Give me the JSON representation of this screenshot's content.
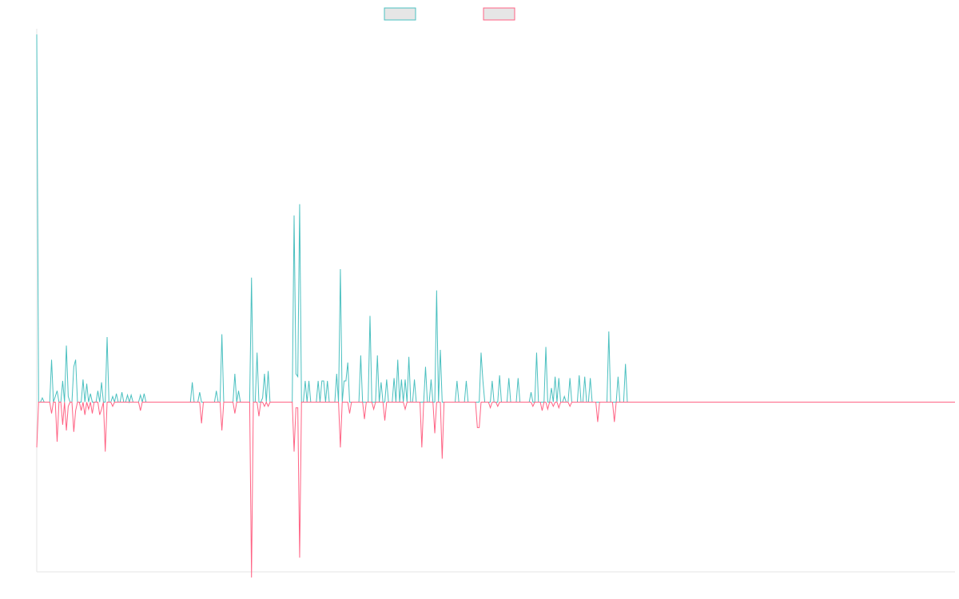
{
  "chart_data": {
    "type": "line",
    "title": "",
    "xlabel": "",
    "ylabel": "",
    "ylim": [
      -1.2,
      2.64
    ],
    "legend": "top",
    "grid": false,
    "colors": {
      "series_a": "#4bc0c0",
      "series_b": "#ff6384",
      "legend_fill": "#e6e6e6",
      "axis": "#e6e6e6"
    },
    "series": [
      {
        "color": "#4bc0c0",
        "values": [
          2.6,
          0,
          0,
          0.03,
          0,
          0,
          0,
          0,
          0.3,
          0,
          0.04,
          0.08,
          0,
          0,
          0.15,
          0,
          0.4,
          0.04,
          0,
          0,
          0.25,
          0.3,
          0,
          0,
          0,
          0.16,
          0,
          0.13,
          0,
          0.06,
          0,
          0,
          0,
          0.08,
          0,
          0.14,
          0,
          0,
          0.46,
          0,
          0,
          0.04,
          0,
          0.06,
          0,
          0,
          0.07,
          0,
          0,
          0.05,
          0,
          0.05,
          0,
          0,
          0,
          0,
          0.05,
          0,
          0.06,
          0,
          0,
          0,
          0,
          0,
          0,
          0,
          0,
          0,
          0,
          0,
          0,
          0,
          0,
          0,
          0,
          0,
          0,
          0,
          0,
          0,
          0,
          0,
          0,
          0,
          0.14,
          0,
          0,
          0,
          0.07,
          0,
          0,
          0,
          0,
          0,
          0,
          0,
          0,
          0.08,
          0,
          0,
          0.48,
          0,
          0,
          0,
          0,
          0,
          0,
          0.2,
          0,
          0.08,
          0,
          0,
          0,
          0,
          0,
          0,
          0.88,
          0,
          0,
          0.35,
          0,
          0,
          0.03,
          0.2,
          0,
          0.22,
          0,
          0,
          0,
          0,
          0,
          0,
          0,
          0,
          0,
          0,
          0,
          0,
          0,
          1.32,
          0.2,
          0.18,
          1.4,
          0,
          0,
          0.15,
          0,
          0.15,
          0,
          0,
          0,
          0,
          0.15,
          0,
          0.15,
          0.15,
          0,
          0.15,
          0,
          0,
          0,
          0,
          0.2,
          0,
          0.94,
          0,
          0.15,
          0.15,
          0.28,
          0,
          0,
          0,
          0,
          0,
          0,
          0.33,
          0,
          0,
          0,
          0,
          0.61,
          0,
          0,
          0,
          0.33,
          0,
          0.14,
          0,
          0,
          0.16,
          0,
          0,
          0,
          0.17,
          0,
          0.3,
          0,
          0.16,
          0,
          0.16,
          0,
          0.32,
          0,
          0,
          0.16,
          0,
          0,
          0,
          0,
          0,
          0.25,
          0,
          0,
          0.16,
          0,
          0,
          0.79,
          0,
          0.37,
          0,
          0,
          0,
          0,
          0,
          0,
          0,
          0,
          0.15,
          0,
          0,
          0,
          0,
          0.15,
          0,
          0,
          0,
          0,
          0,
          0,
          0,
          0.35,
          0.15,
          0,
          0,
          0,
          0,
          0.15,
          0,
          0,
          0,
          0.19,
          0,
          0,
          0,
          0,
          0.17,
          0,
          0,
          0,
          0,
          0.17,
          0,
          0,
          0,
          0,
          0,
          0,
          0.07,
          0,
          0,
          0.35,
          0,
          0,
          0,
          0,
          0.39,
          0,
          0,
          0.1,
          0,
          0.18,
          0,
          0.17,
          0,
          0,
          0.04,
          0,
          0,
          0.17,
          0,
          0,
          0,
          0,
          0.19,
          0,
          0,
          0.18,
          0,
          0,
          0.17,
          0,
          0,
          0,
          0,
          0,
          0,
          0,
          0,
          0,
          0.5,
          0,
          0,
          0,
          0,
          0.18,
          0,
          0,
          0,
          0.27,
          0,
          0,
          0,
          0,
          0,
          0,
          0,
          0,
          0,
          0,
          0,
          0,
          0,
          0,
          0,
          0,
          0,
          0,
          0,
          0,
          0,
          0,
          0,
          0,
          0,
          0,
          0,
          0,
          0,
          0,
          0,
          0,
          0,
          0,
          0,
          0,
          0,
          0,
          0,
          0,
          0,
          0,
          0,
          0,
          0,
          0,
          0,
          0,
          0,
          0,
          0,
          0,
          0,
          0,
          0,
          0,
          0,
          0,
          0,
          0,
          0,
          0,
          0,
          0,
          0,
          0,
          0,
          0,
          0,
          0,
          0,
          0,
          0,
          0,
          0,
          0,
          0,
          0,
          0,
          0,
          0,
          0,
          0,
          0,
          0,
          0,
          0,
          0,
          0,
          0,
          0,
          0,
          0,
          0,
          0,
          0,
          0,
          0,
          0,
          0,
          0,
          0,
          0,
          0,
          0,
          0,
          0,
          0,
          0,
          0,
          0,
          0,
          0,
          0,
          0,
          0,
          0,
          0,
          0,
          0,
          0,
          0,
          0,
          0,
          0,
          0,
          0,
          0,
          0,
          0,
          0,
          0,
          0,
          0,
          0,
          0,
          0,
          0,
          0,
          0,
          0,
          0,
          0,
          0,
          0,
          0,
          0,
          0,
          0,
          0,
          0,
          0,
          0,
          0,
          0,
          0,
          0,
          0,
          0,
          0,
          0,
          0,
          0,
          0,
          0,
          0,
          0,
          0,
          0,
          0,
          0,
          0,
          0,
          0,
          0,
          0,
          0,
          0
        ]
      },
      {
        "color": "#ff6384",
        "values": [
          -0.32,
          0,
          0,
          0,
          0,
          0,
          0,
          0,
          -0.08,
          0,
          0,
          -0.28,
          0,
          0,
          -0.16,
          0,
          -0.2,
          -0.03,
          0,
          0,
          -0.21,
          -0.06,
          0,
          0,
          -0.06,
          0,
          -0.09,
          0,
          -0.05,
          0,
          -0.08,
          0,
          0,
          0,
          -0.09,
          -0.05,
          0,
          -0.35,
          0,
          0,
          0,
          -0.03,
          0,
          0,
          0,
          0,
          0,
          0,
          0,
          0,
          0,
          0,
          0,
          0,
          0,
          0,
          -0.06,
          0,
          0,
          0,
          0,
          0,
          0,
          0,
          0,
          0,
          0,
          0,
          0,
          0,
          0,
          0,
          0,
          0,
          0,
          0,
          0,
          0,
          0,
          0,
          0,
          0,
          0,
          0,
          0,
          0,
          0,
          0,
          0,
          -0.15,
          0,
          0,
          0,
          0,
          0,
          0,
          0,
          0,
          0,
          0,
          -0.2,
          0,
          0,
          0,
          0,
          0,
          0,
          -0.08,
          0,
          0,
          0,
          0,
          0,
          0,
          0,
          0,
          -1.24,
          0,
          0,
          0,
          -0.1,
          0,
          0,
          -0.03,
          0,
          -0.03,
          0,
          0,
          0,
          0,
          0,
          0,
          0,
          0,
          0,
          0,
          0,
          0,
          0,
          -0.35,
          -0.04,
          -0.04,
          -1.1,
          0,
          0,
          0,
          0,
          0,
          0,
          0,
          0,
          0,
          0,
          0,
          0,
          0,
          0,
          0,
          0,
          0,
          0,
          0,
          0,
          0,
          -0.32,
          0,
          0,
          0,
          0,
          -0.08,
          0,
          0,
          0,
          0,
          0,
          0,
          0,
          -0.12,
          0,
          0,
          0,
          0,
          -0.05,
          0,
          0,
          0,
          0,
          0,
          -0.13,
          0,
          0,
          0,
          0,
          0,
          0,
          0,
          0,
          0,
          0,
          -0.05,
          0,
          0,
          0,
          0,
          0,
          0,
          0,
          0,
          -0.32,
          0,
          0,
          0,
          0,
          0,
          0,
          -0.22,
          0,
          0,
          0,
          -0.4,
          0,
          0,
          0,
          0,
          0,
          0,
          0,
          0,
          0,
          0,
          0,
          0,
          0,
          0,
          0,
          0,
          0,
          0,
          -0.18,
          -0.18,
          0,
          0,
          0,
          0,
          0,
          -0.04,
          0,
          0,
          0,
          -0.03,
          0,
          0,
          0,
          0,
          0,
          0,
          0,
          0,
          0,
          0,
          0,
          0,
          0,
          0,
          0,
          0,
          0,
          0,
          -0.03,
          0,
          0,
          0,
          0,
          -0.06,
          0,
          0,
          -0.05,
          0,
          0,
          -0.03,
          0,
          0,
          -0.04,
          0,
          0,
          0,
          0,
          0,
          -0.03,
          0,
          0,
          0,
          0,
          0,
          0,
          0,
          0,
          0,
          0,
          0,
          0,
          0,
          0,
          -0.14,
          0,
          0,
          0,
          0,
          0,
          0,
          0,
          0,
          -0.14,
          0,
          0,
          0,
          0,
          0,
          0,
          0,
          0,
          0,
          0,
          0,
          0,
          0,
          0,
          0,
          0,
          0,
          0,
          0,
          0,
          0,
          0,
          0,
          0,
          0,
          0,
          0,
          0,
          0,
          0,
          0,
          0,
          0,
          0,
          0,
          0,
          0,
          0,
          0,
          0,
          0,
          0,
          0,
          0,
          0,
          0,
          0,
          0,
          0,
          0,
          0,
          0,
          0,
          0,
          0,
          0,
          0,
          0,
          0,
          0,
          0,
          0,
          0,
          0,
          0,
          0,
          0,
          0,
          0,
          0,
          0,
          0,
          0,
          0,
          0,
          0,
          0,
          0,
          0,
          0,
          0,
          0,
          0,
          0,
          0,
          0,
          0,
          0,
          0,
          0,
          0,
          0,
          0,
          0,
          0,
          0,
          0,
          0,
          0,
          0,
          0,
          0,
          0,
          0,
          0,
          0,
          0,
          0,
          0,
          0,
          0,
          0,
          0,
          0,
          0,
          0,
          0,
          0,
          0,
          0,
          0,
          0,
          0,
          0,
          0,
          0,
          0,
          0,
          0,
          0,
          0,
          0,
          0,
          0,
          0,
          0,
          0,
          0,
          0,
          0,
          0,
          0,
          0,
          0,
          0,
          0,
          0,
          0,
          0,
          0,
          0,
          0,
          0,
          0,
          0,
          0,
          0,
          0,
          0,
          0,
          0,
          0,
          0,
          0,
          0,
          0,
          0,
          0,
          0,
          0,
          0,
          0,
          0,
          0,
          0,
          0,
          0,
          0,
          0,
          0,
          0,
          0,
          0,
          0
        ]
      }
    ]
  }
}
